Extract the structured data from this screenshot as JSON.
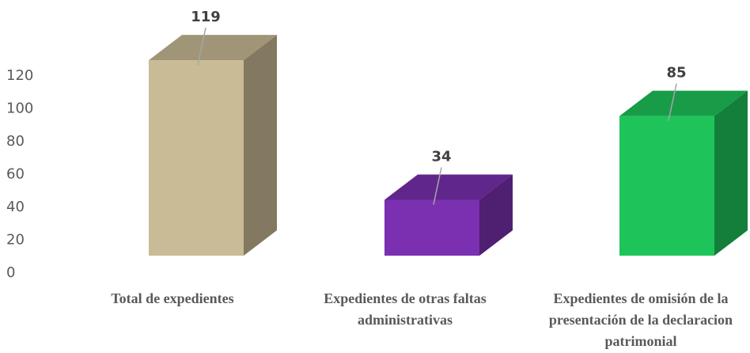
{
  "chart_data": {
    "type": "bar3d",
    "categories": [
      "Total de expedientes",
      "Expedientes de otras faltas administrativas",
      "Expedientes de omisión de la presentación de la declaracion patrimonial"
    ],
    "values": [
      119,
      34,
      85
    ],
    "colors": [
      "#c9bb95",
      "#7a30b0",
      "#1ec45a"
    ],
    "ylim": [
      0,
      120
    ],
    "yticks": [
      0,
      20,
      40,
      60,
      80,
      100,
      120
    ]
  }
}
